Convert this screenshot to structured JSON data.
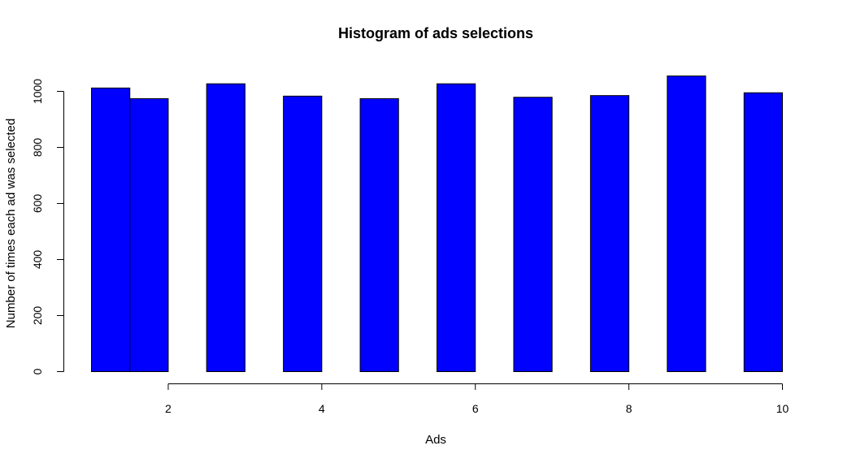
{
  "chart_data": {
    "type": "bar",
    "title": "Histogram of ads selections",
    "xlabel": "Ads",
    "ylabel": "Number of times each ad was selected",
    "bar_color": "#0000ff",
    "bins": [
      {
        "start": 1.0,
        "end": 1.5,
        "value": 1012
      },
      {
        "start": 1.5,
        "end": 2.0,
        "value": 974
      },
      {
        "start": 2.5,
        "end": 3.0,
        "value": 1027
      },
      {
        "start": 3.5,
        "end": 4.0,
        "value": 983
      },
      {
        "start": 4.5,
        "end": 5.0,
        "value": 974
      },
      {
        "start": 5.5,
        "end": 6.0,
        "value": 1027
      },
      {
        "start": 6.5,
        "end": 7.0,
        "value": 979
      },
      {
        "start": 7.5,
        "end": 8.0,
        "value": 985
      },
      {
        "start": 8.5,
        "end": 9.0,
        "value": 1055
      },
      {
        "start": 9.5,
        "end": 10.0,
        "value": 995
      }
    ],
    "xlim": [
      1,
      10
    ],
    "ylim": [
      0,
      1055
    ],
    "x_ticks": [
      2,
      4,
      6,
      8,
      10
    ],
    "x_tick_labels": [
      "2",
      "4",
      "6",
      "8",
      "10"
    ],
    "y_ticks": [
      0,
      200,
      400,
      600,
      800,
      1000
    ],
    "y_tick_labels": [
      "0",
      "200",
      "400",
      "600",
      "800",
      "1000"
    ],
    "grid": false,
    "legend": "none"
  }
}
